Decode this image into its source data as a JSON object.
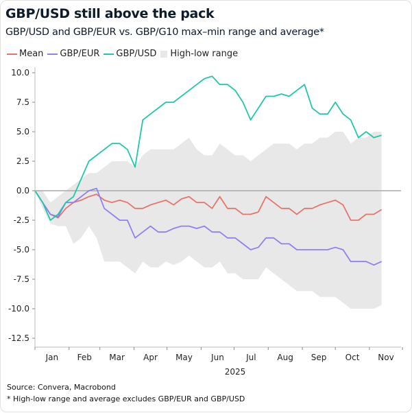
{
  "title": "GBP/USD still above the pack",
  "subtitle": "GBP/USD and GBP/EUR vs. GBP/G10 max–min range and average*",
  "source": "Source: Convera, Macrobond",
  "footnote": "* High-low range and average excludes GBP/EUR and GBP/USD",
  "chart_data": {
    "type": "line",
    "xlabel": "2025",
    "ylabel": "",
    "ylim": [
      -13.5,
      10.5
    ],
    "yticks": [
      "10.0",
      "7.5",
      "5.0",
      "2.5",
      "0.0",
      "-2.5",
      "-5.0",
      "-7.5",
      "-10.0",
      "-12.5"
    ],
    "months": [
      "Jan",
      "Feb",
      "Mar",
      "Apr",
      "May",
      "Jun",
      "Jul",
      "Aug",
      "Sep",
      "Oct",
      "Nov"
    ],
    "legend_position": "top-left",
    "grid": false,
    "dates": [
      "2025-01-01",
      "2025-01-08",
      "2025-01-15",
      "2025-01-22",
      "2025-01-29",
      "2025-02-05",
      "2025-02-12",
      "2025-02-19",
      "2025-02-26",
      "2025-03-05",
      "2025-03-12",
      "2025-03-19",
      "2025-03-26",
      "2025-04-02",
      "2025-04-09",
      "2025-04-16",
      "2025-04-23",
      "2025-04-30",
      "2025-05-07",
      "2025-05-14",
      "2025-05-21",
      "2025-05-28",
      "2025-06-04",
      "2025-06-11",
      "2025-06-18",
      "2025-06-25",
      "2025-07-02",
      "2025-07-09",
      "2025-07-16",
      "2025-07-23",
      "2025-07-30",
      "2025-08-06",
      "2025-08-13",
      "2025-08-20",
      "2025-08-27",
      "2025-09-03",
      "2025-09-10",
      "2025-09-17",
      "2025-09-24",
      "2025-10-01",
      "2025-10-08",
      "2025-10-15",
      "2025-10-22",
      "2025-10-29",
      "2025-11-05",
      "2025-11-12"
    ],
    "range": {
      "name": "High-low range",
      "color": "#e8e8e8",
      "high": [
        0,
        0,
        -1,
        -0.5,
        0,
        0.5,
        1,
        1.5,
        1.5,
        2,
        2.5,
        2.5,
        2.5,
        2,
        3,
        3.5,
        3.5,
        3.5,
        3.5,
        4,
        4.5,
        3.5,
        3,
        3,
        4,
        3.5,
        3,
        3,
        2.5,
        3,
        3.5,
        4,
        4,
        4,
        3.5,
        4,
        4,
        4.5,
        4.5,
        5,
        5,
        4,
        4.5,
        4.5,
        5,
        5
      ],
      "low": [
        0,
        -1.5,
        -2.8,
        -3,
        -3,
        -4.5,
        -4,
        -3,
        -4,
        -6,
        -6,
        -6,
        -6.5,
        -7,
        -6,
        -6.5,
        -6.5,
        -6,
        -6.3,
        -6,
        -5.5,
        -6,
        -6.5,
        -6.5,
        -6,
        -7,
        -7,
        -7.5,
        -7.5,
        -7.5,
        -6.5,
        -7,
        -7.5,
        -8,
        -8.5,
        -8.5,
        -8.5,
        -9,
        -9,
        -9,
        -9.5,
        -10,
        -10,
        -10,
        -10,
        -9.7
      ]
    },
    "series": [
      {
        "name": "Mean",
        "color": "#e8736a",
        "values": [
          0,
          -1,
          -2,
          -2.3,
          -1.5,
          -1,
          -0.8,
          -0.5,
          -0.3,
          -0.8,
          -1,
          -0.8,
          -1,
          -1.5,
          -1.5,
          -1.2,
          -1,
          -0.8,
          -1.2,
          -0.7,
          -0.5,
          -1,
          -1,
          -1.5,
          -0.5,
          -1.5,
          -1.5,
          -2,
          -2,
          -1.8,
          -0.5,
          -1,
          -1.5,
          -1.5,
          -2,
          -1.5,
          -1.5,
          -1.2,
          -1,
          -0.8,
          -1.2,
          -2.5,
          -2.5,
          -2,
          -2,
          -1.6
        ]
      },
      {
        "name": "GBP/EUR",
        "color": "#8f7ff0",
        "values": [
          0,
          -1,
          -2,
          -2.2,
          -1,
          -1,
          -0.5,
          0,
          0.2,
          -1.5,
          -2,
          -2.5,
          -2.5,
          -4,
          -3.5,
          -3,
          -3.5,
          -3.5,
          -3.2,
          -3,
          -3,
          -3.2,
          -3,
          -3.5,
          -3.5,
          -4,
          -4,
          -4.5,
          -5,
          -4.8,
          -4,
          -4,
          -4.5,
          -4.5,
          -5,
          -5,
          -5,
          -5,
          -5,
          -4.8,
          -5,
          -6,
          -6,
          -6,
          -6.3,
          -6
        ]
      },
      {
        "name": "GBP/USD",
        "color": "#1ec8a8",
        "values": [
          0,
          -1,
          -2.5,
          -2,
          -1,
          -0.5,
          1,
          2.5,
          3,
          3.5,
          4,
          4,
          3.5,
          2,
          6,
          6.5,
          7,
          7.5,
          7.5,
          8,
          8.5,
          9,
          9.5,
          9.7,
          9,
          9,
          8.5,
          7.5,
          6,
          7,
          8,
          8,
          8.2,
          8,
          8.5,
          9,
          7,
          6.5,
          6.5,
          7.5,
          6.5,
          6,
          4.5,
          5,
          4.5,
          4.7
        ]
      }
    ]
  }
}
